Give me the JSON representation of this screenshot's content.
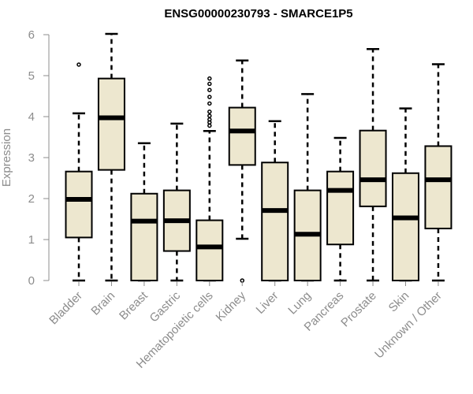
{
  "chart_data": {
    "type": "boxplot",
    "title": "ENSG00000230793 - SMARCE1P5",
    "xlabel": "",
    "ylabel": "Expression",
    "ylim": [
      0,
      6
    ],
    "yticks": [
      0,
      1,
      2,
      3,
      4,
      5,
      6
    ],
    "box_color": "#ede7cf",
    "categories": [
      "Bladder",
      "Brain",
      "Breast",
      "Gastric",
      "Hematopoietic cells",
      "Kidney",
      "Liver",
      "Lung",
      "Pancreas",
      "Prostate",
      "Skin",
      "Unknown / Other"
    ],
    "boxes": [
      {
        "name": "Bladder",
        "whisker_low": 0.0,
        "q1": 1.05,
        "median": 1.98,
        "q3": 2.66,
        "whisker_high": 4.08,
        "outliers": [
          5.27
        ]
      },
      {
        "name": "Brain",
        "whisker_low": 0.0,
        "q1": 2.7,
        "median": 3.97,
        "q3": 4.93,
        "whisker_high": 6.02,
        "outliers": []
      },
      {
        "name": "Breast",
        "whisker_low": 0.0,
        "q1": 0.0,
        "median": 1.45,
        "q3": 2.12,
        "whisker_high": 3.35,
        "outliers": []
      },
      {
        "name": "Gastric",
        "whisker_low": 0.0,
        "q1": 0.72,
        "median": 1.46,
        "q3": 2.2,
        "whisker_high": 3.83,
        "outliers": []
      },
      {
        "name": "Hematopoietic cells",
        "whisker_low": 0.0,
        "q1": 0.0,
        "median": 0.82,
        "q3": 1.47,
        "whisker_high": 3.65,
        "outliers": [
          3.78,
          3.86,
          3.93,
          4.02,
          4.12,
          4.32,
          4.48,
          4.65,
          4.8,
          4.93
        ]
      },
      {
        "name": "Kidney",
        "whisker_low": 1.02,
        "q1": 2.82,
        "median": 3.65,
        "q3": 4.22,
        "whisker_high": 5.37,
        "outliers": [
          0.0
        ]
      },
      {
        "name": "Liver",
        "whisker_low": 0.0,
        "q1": 0.0,
        "median": 1.71,
        "q3": 2.88,
        "whisker_high": 3.89,
        "outliers": []
      },
      {
        "name": "Lung",
        "whisker_low": 0.0,
        "q1": 0.0,
        "median": 1.13,
        "q3": 2.2,
        "whisker_high": 4.55,
        "outliers": []
      },
      {
        "name": "Pancreas",
        "whisker_low": 0.0,
        "q1": 0.88,
        "median": 2.2,
        "q3": 2.66,
        "whisker_high": 3.48,
        "outliers": []
      },
      {
        "name": "Prostate",
        "whisker_low": 0.0,
        "q1": 1.81,
        "median": 2.46,
        "q3": 3.66,
        "whisker_high": 5.65,
        "outliers": []
      },
      {
        "name": "Skin",
        "whisker_low": 0.0,
        "q1": 0.0,
        "median": 1.53,
        "q3": 2.62,
        "whisker_high": 4.2,
        "outliers": []
      },
      {
        "name": "Unknown / Other",
        "whisker_low": 0.0,
        "q1": 1.27,
        "median": 2.46,
        "q3": 3.28,
        "whisker_high": 5.28,
        "outliers": []
      }
    ]
  }
}
